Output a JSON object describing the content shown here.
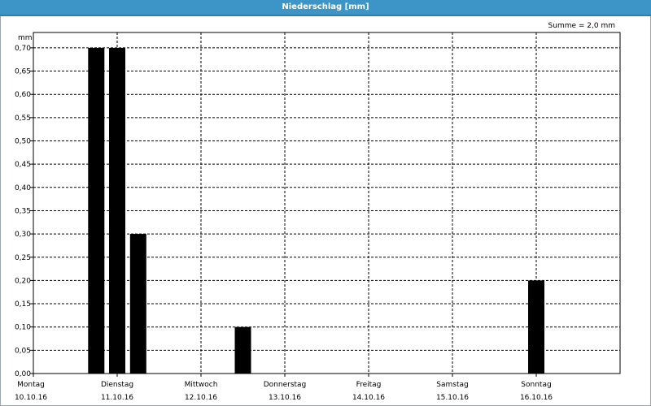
{
  "window": {
    "title": "Niederschlag [mm]"
  },
  "sum_label": "Summe = 2,0 mm",
  "colors": {
    "header": "#3d95c7",
    "bar": "#000000",
    "grid": "#000000"
  },
  "chart_data": {
    "type": "bar",
    "ylabel": "mm",
    "ylim": [
      0,
      0.75
    ],
    "yticks": [
      "0,00",
      "0,05",
      "0,10",
      "0,15",
      "0,20",
      "0,25",
      "0,30",
      "0,35",
      "0,40",
      "0,45",
      "0,50",
      "0,55",
      "0,60",
      "0,65",
      "0,70"
    ],
    "xlim_days": [
      0,
      7
    ],
    "day_labels": [
      {
        "day": "Montag",
        "date": "10.10.16"
      },
      {
        "day": "Dienstag",
        "date": "11.10.16"
      },
      {
        "day": "Mittwoch",
        "date": "12.10.16"
      },
      {
        "day": "Donnerstag",
        "date": "13.10.16"
      },
      {
        "day": "Freitag",
        "date": "14.10.16"
      },
      {
        "day": "Samstag",
        "date": "15.10.16"
      },
      {
        "day": "Sonntag",
        "date": "16.10.16"
      }
    ],
    "bars": [
      {
        "time": "10.10.16 18:00",
        "value": 0.7
      },
      {
        "time": "11.10.16 00:00",
        "value": 0.7
      },
      {
        "time": "11.10.16 06:00",
        "value": 0.3
      },
      {
        "time": "12.10.16 12:00",
        "value": 0.1
      },
      {
        "time": "16.10.16 00:00",
        "value": 0.2
      }
    ],
    "grid": true
  }
}
